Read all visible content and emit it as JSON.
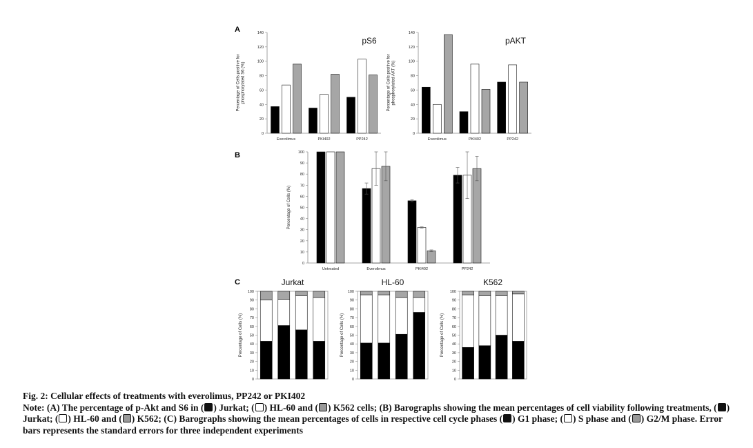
{
  "colors": {
    "g1_black": "#000000",
    "s_white": "#ffffff",
    "g2_grey": "#a6a6a6",
    "axis": "#888888"
  },
  "panels": {
    "A": {
      "label": "A"
    },
    "B": {
      "label": "B"
    },
    "C": {
      "label": "C"
    }
  },
  "chart_data": [
    {
      "id": "A-pS6",
      "type": "bar",
      "title": "pS6",
      "ylabel_lines": [
        "Percentage of Cells positive for",
        "phosphorylated S6 (%)"
      ],
      "categories": [
        "Everolimus",
        "PKI402",
        "PP242"
      ],
      "yticks": [
        0,
        20,
        40,
        60,
        80,
        100,
        120,
        140
      ],
      "ylim": [
        0,
        140
      ],
      "series": [
        {
          "name": "Jurkat",
          "color": "#000000",
          "values": [
            37,
            35,
            50
          ]
        },
        {
          "name": "HL-60",
          "color": "#ffffff",
          "values": [
            67,
            54,
            103
          ]
        },
        {
          "name": "K562",
          "color": "#a6a6a6",
          "values": [
            96,
            82,
            81
          ]
        }
      ],
      "grid": false
    },
    {
      "id": "A-pAKT",
      "type": "bar",
      "title": "pAKT",
      "ylabel_lines": [
        "Percentage of Cells positive for",
        "phosphorylated AKT (%)"
      ],
      "categories": [
        "Everolimus",
        "PKI402",
        "PP242"
      ],
      "yticks": [
        0,
        20,
        40,
        60,
        80,
        100,
        120,
        140
      ],
      "ylim": [
        0,
        140
      ],
      "series": [
        {
          "name": "Jurkat",
          "color": "#000000",
          "values": [
            64,
            30,
            71
          ]
        },
        {
          "name": "HL-60",
          "color": "#ffffff",
          "values": [
            40,
            96,
            95
          ]
        },
        {
          "name": "K562",
          "color": "#a6a6a6",
          "values": [
            137,
            61,
            71
          ]
        }
      ],
      "grid": false
    },
    {
      "id": "B-viability",
      "type": "bar",
      "title": "",
      "ylabel_lines": [
        "Percentage of Cells (%)"
      ],
      "categories": [
        "Untreated",
        "Everolimus",
        "PKI402",
        "PP242"
      ],
      "yticks": [
        0,
        10,
        20,
        30,
        40,
        50,
        60,
        70,
        80,
        90,
        100
      ],
      "ylim": [
        0,
        100
      ],
      "series": [
        {
          "name": "Jurkat",
          "color": "#000000",
          "values": [
            100,
            67,
            56,
            79
          ],
          "errors": [
            0,
            5,
            1,
            7
          ]
        },
        {
          "name": "HL-60",
          "color": "#ffffff",
          "values": [
            100,
            85,
            32,
            79
          ],
          "errors": [
            0,
            15,
            0.5,
            21
          ]
        },
        {
          "name": "K562",
          "color": "#a6a6a6",
          "values": [
            100,
            87,
            11,
            85
          ],
          "errors": [
            0,
            13,
            0.8,
            11
          ]
        }
      ],
      "grid": false
    },
    {
      "id": "C-Jurkat",
      "type": "bar",
      "stacked": true,
      "title": "Jurkat",
      "ylabel_lines": [
        "Percentage of Cells (%)"
      ],
      "categories": [
        "",
        "",
        "",
        ""
      ],
      "yticks": [
        0,
        10,
        20,
        30,
        40,
        50,
        60,
        70,
        80,
        90,
        100
      ],
      "ylim": [
        0,
        100
      ],
      "series": [
        {
          "name": "G1 phase",
          "color": "#000000",
          "values": [
            43,
            61,
            56,
            43
          ]
        },
        {
          "name": "S phase",
          "color": "#ffffff",
          "values": [
            47,
            30,
            39,
            50
          ]
        },
        {
          "name": "G2/M phase",
          "color": "#a6a6a6",
          "values": [
            10,
            9,
            5,
            7
          ]
        }
      ],
      "grid": false
    },
    {
      "id": "C-HL60",
      "type": "bar",
      "stacked": true,
      "title": "HL-60",
      "ylabel_lines": [
        "Percentage of Cells (%)"
      ],
      "categories": [
        "",
        "",
        "",
        ""
      ],
      "yticks": [
        0,
        10,
        20,
        30,
        40,
        50,
        60,
        70,
        80,
        90,
        100
      ],
      "ylim": [
        0,
        100
      ],
      "series": [
        {
          "name": "G1 phase",
          "color": "#000000",
          "values": [
            41,
            41,
            51,
            76
          ]
        },
        {
          "name": "S phase",
          "color": "#ffffff",
          "values": [
            55,
            55,
            42,
            17
          ]
        },
        {
          "name": "G2/M phase",
          "color": "#a6a6a6",
          "values": [
            4,
            4,
            7,
            7
          ]
        }
      ],
      "grid": false
    },
    {
      "id": "C-K562",
      "type": "bar",
      "stacked": true,
      "title": "K562",
      "ylabel_lines": [
        "Percentage of Cells (%)"
      ],
      "categories": [
        "",
        "",
        "",
        ""
      ],
      "yticks": [
        0,
        10,
        20,
        30,
        40,
        50,
        60,
        70,
        80,
        90,
        100
      ],
      "ylim": [
        0,
        100
      ],
      "series": [
        {
          "name": "G1 phase",
          "color": "#000000",
          "values": [
            36,
            38,
            50,
            43
          ]
        },
        {
          "name": "S phase",
          "color": "#ffffff",
          "values": [
            60,
            57,
            45,
            54
          ]
        },
        {
          "name": "G2/M phase",
          "color": "#a6a6a6",
          "values": [
            4,
            5,
            5,
            3
          ]
        }
      ],
      "grid": false
    }
  ],
  "caption": {
    "title": "Fig. 2: Cellular effects of treatments with everolimus, PP242 or PKI402",
    "a_intro": "Note: (A) The percentage of p-Akt and S6 in (",
    "a_jurkat": ") Jurkat; (",
    "a_hl60": ") HL-60 and (",
    "a_k562": ") K562 cells; (B) Barographs showing the mean percentages of cell viability following treatments, (",
    "b_jurkat": ") Jurkat; (",
    "b_hl60": ") HL-60 and (",
    "b_k562": ") K562; (C) Barographs showing the mean percentages of cells in respective cell cycle phases (",
    "c_g1": ") G1 phase; (",
    "c_s": ") S phase and (",
    "c_g2": ") G2/M phase. Error bars represents the standard errors for three independent experiments"
  }
}
